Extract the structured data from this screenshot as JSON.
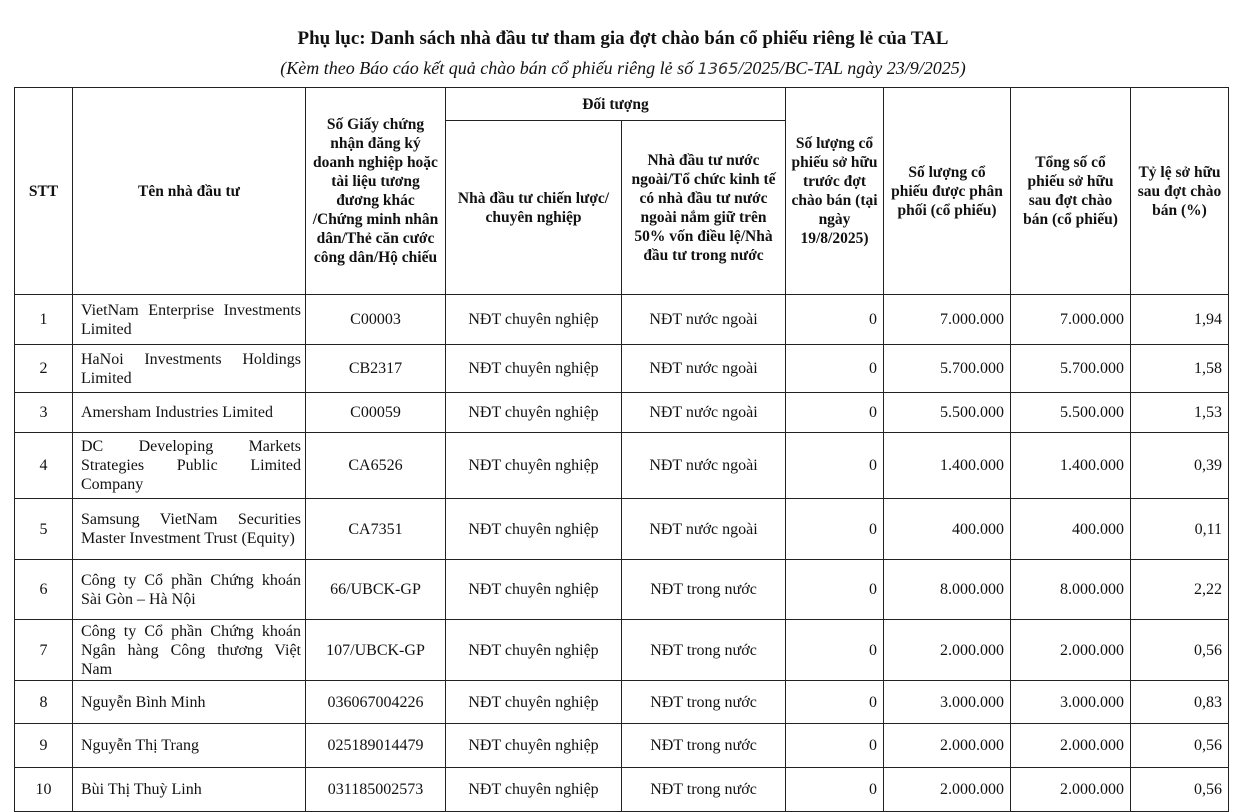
{
  "title": "Phụ lục: Danh sách nhà đầu tư tham gia đợt chào bán cổ phiếu riêng lẻ của TAL",
  "subtitle_before": "(Kèm theo Báo cáo kết quả chào bán cổ phiếu riêng lẻ số",
  "subtitle_number": "1365",
  "subtitle_after": "/2025/BC-TAL ngày 23/9/2025)",
  "headers": {
    "stt": "STT",
    "name": "Tên nhà đầu tư",
    "id": "Số Giấy chứng nhận đăng ký doanh nghiệp hoặc tài liệu tương đương khác /Chứng minh nhân dân/Thẻ căn cước công dân/Hộ chiếu",
    "group": "Đối tượng",
    "type1": "Nhà đầu tư chiến lược/ chuyên nghiệp",
    "type2": "Nhà đầu tư nước ngoài/Tổ chức kinh tế có nhà đầu tư nước ngoài nắm giữ trên 50% vốn điều lệ/Nhà đầu tư trong nước",
    "before": "Số lượng cổ phiếu sở hữu trước đợt chào bán (tại ngày 19/8/2025)",
    "allocated": "Số lượng cổ phiếu được phân phối (cổ phiếu)",
    "after": "Tổng số cổ phiếu sở hữu sau đợt chào bán (cổ phiếu)",
    "ratio": "Tỷ lệ sở hữu sau đợt chào bán (%)"
  },
  "rows": [
    {
      "stt": "1",
      "name": "VietNam Enterprise Investments Limited",
      "id": "C00003",
      "type1": "NĐT chuyên nghiệp",
      "type2": "NĐT nước ngoài",
      "before": "0",
      "allocated": "7.000.000",
      "after": "7.000.000",
      "ratio": "1,94"
    },
    {
      "stt": "2",
      "name": "HaNoi Investments Holdings Limited",
      "id": "CB2317",
      "type1": "NĐT chuyên nghiệp",
      "type2": "NĐT nước ngoài",
      "before": "0",
      "allocated": "5.700.000",
      "after": "5.700.000",
      "ratio": "1,58"
    },
    {
      "stt": "3",
      "name": "Amersham Industries Limited",
      "id": "C00059",
      "type1": "NĐT chuyên nghiệp",
      "type2": "NĐT nước ngoài",
      "before": "0",
      "allocated": "5.500.000",
      "after": "5.500.000",
      "ratio": "1,53"
    },
    {
      "stt": "4",
      "name": "DC Developing Markets Strategies Public Limited Company",
      "id": "CA6526",
      "type1": "NĐT chuyên nghiệp",
      "type2": "NĐT nước ngoài",
      "before": "0",
      "allocated": "1.400.000",
      "after": "1.400.000",
      "ratio": "0,39"
    },
    {
      "stt": "5",
      "name": "Samsung VietNam Securities Master Investment Trust (Equity)",
      "id": "CA7351",
      "type1": "NĐT chuyên nghiệp",
      "type2": "NĐT nước ngoài",
      "before": "0",
      "allocated": "400.000",
      "after": "400.000",
      "ratio": "0,11"
    },
    {
      "stt": "6",
      "name": "Công ty Cổ phần Chứng khoán Sài Gòn – Hà Nội",
      "id": "66/UBCK-GP",
      "type1": "NĐT chuyên nghiệp",
      "type2": "NĐT trong nước",
      "before": "0",
      "allocated": "8.000.000",
      "after": "8.000.000",
      "ratio": "2,22"
    },
    {
      "stt": "7",
      "name": "Công ty Cổ phần Chứng khoán Ngân hàng Công thương Việt Nam",
      "id": "107/UBCK-GP",
      "type1": "NĐT chuyên nghiệp",
      "type2": "NĐT trong nước",
      "before": "0",
      "allocated": "2.000.000",
      "after": "2.000.000",
      "ratio": "0,56"
    },
    {
      "stt": "8",
      "name": "Nguyễn Bình Minh",
      "id": "036067004226",
      "type1": "NĐT chuyên nghiệp",
      "type2": "NĐT trong nước",
      "before": "0",
      "allocated": "3.000.000",
      "after": "3.000.000",
      "ratio": "0,83"
    },
    {
      "stt": "9",
      "name": "Nguyễn Thị Trang",
      "id": "025189014479",
      "type1": "NĐT chuyên nghiệp",
      "type2": "NĐT trong nước",
      "before": "0",
      "allocated": "2.000.000",
      "after": "2.000.000",
      "ratio": "0,56"
    },
    {
      "stt": "10",
      "name": "Bùi Thị Thuỳ Linh",
      "id": "031185002573",
      "type1": "NĐT chuyên nghiệp",
      "type2": "NĐT trong nước",
      "before": "0",
      "allocated": "2.000.000",
      "after": "2.000.000",
      "ratio": "0,56"
    }
  ]
}
